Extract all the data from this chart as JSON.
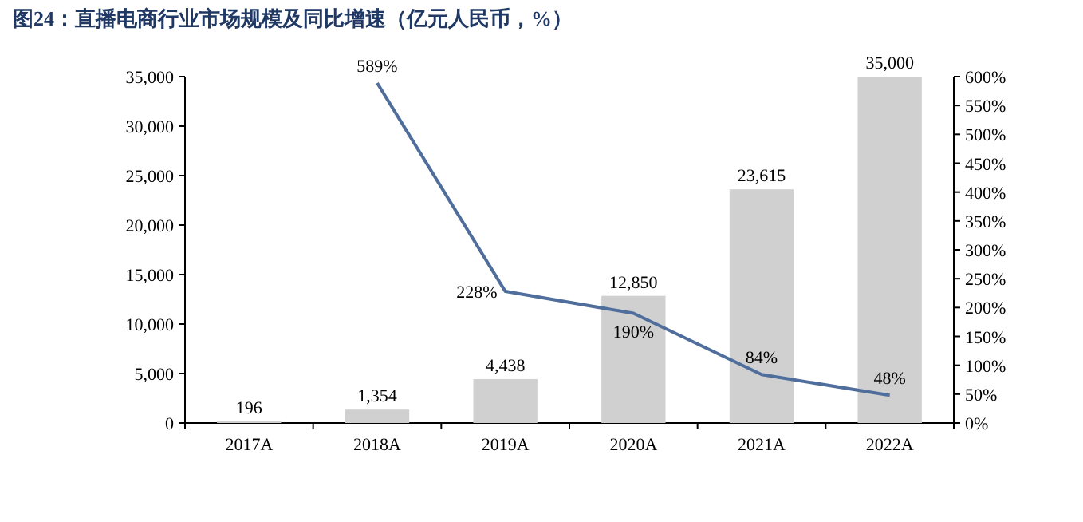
{
  "chart_data": {
    "type": "bar",
    "title": "图24：直播电商行业市场规模及同比增速（亿元人民币，%）",
    "categories": [
      "2017A",
      "2018A",
      "2019A",
      "2020A",
      "2021A",
      "2022A"
    ],
    "series": [
      {
        "color": "#d0d0d0",
        "values": [
          196,
          1354,
          4438,
          12850,
          23615,
          35000
        ],
        "value_labels": [
          "196",
          "1,354",
          "4,438",
          "12,850",
          "23,615",
          "35,000"
        ]
      },
      {
        "type": "line",
        "axis": "y2",
        "color": "#4f6e9c",
        "values": [
          null,
          589,
          228,
          190,
          84,
          48
        ],
        "value_labels": [
          null,
          "589%",
          "228%",
          "190%",
          "84%",
          "48%"
        ]
      }
    ],
    "ylim": [
      0,
      35000
    ],
    "yticks": [
      {
        "value": 0,
        "label": "0"
      },
      {
        "value": 5000,
        "label": "5,000"
      },
      {
        "value": 10000,
        "label": "10,000"
      },
      {
        "value": 15000,
        "label": "15,000"
      },
      {
        "value": 20000,
        "label": "20,000"
      },
      {
        "value": 25000,
        "label": "25,000"
      },
      {
        "value": 30000,
        "label": "30,000"
      },
      {
        "value": 35000,
        "label": "35,000"
      }
    ],
    "y2lim": [
      0,
      600
    ],
    "y2ticks": [
      {
        "value": 0,
        "label": "0%"
      },
      {
        "value": 50,
        "label": "50%"
      },
      {
        "value": 100,
        "label": "100%"
      },
      {
        "value": 150,
        "label": "150%"
      },
      {
        "value": 200,
        "label": "200%"
      },
      {
        "value": 250,
        "label": "250%"
      },
      {
        "value": 300,
        "label": "300%"
      },
      {
        "value": 350,
        "label": "350%"
      },
      {
        "value": 400,
        "label": "400%"
      },
      {
        "value": 450,
        "label": "450%"
      },
      {
        "value": 500,
        "label": "500%"
      },
      {
        "value": 550,
        "label": "550%"
      },
      {
        "value": 600,
        "label": "600%"
      }
    ],
    "grid": false
  }
}
